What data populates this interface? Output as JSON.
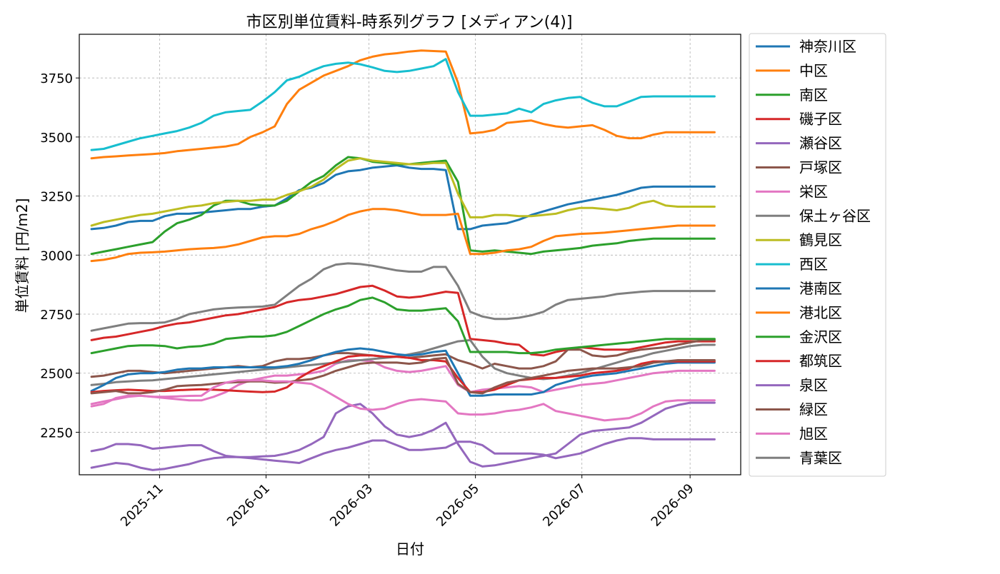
{
  "chart_data": {
    "type": "line",
    "title": "市区別単位賃料-時系列グラフ [メディアン(4)]",
    "xlabel": "日付",
    "ylabel": "単位賃料 [円/m2]",
    "xlim": [
      "2025-09-16",
      "2026-09-30"
    ],
    "ylim": [
      2070,
      3935
    ],
    "yticks": [
      2250,
      2500,
      2750,
      3000,
      3250,
      3500,
      3750
    ],
    "xticks": [
      "2025-11",
      "2026-01",
      "2026-03",
      "2026-05",
      "2026-07",
      "2026-09"
    ],
    "grid": true,
    "legend_position": "outside-right",
    "dates": [
      "2025-09-23",
      "2025-09-30",
      "2025-10-07",
      "2025-10-14",
      "2025-10-21",
      "2025-10-28",
      "2025-11-04",
      "2025-11-11",
      "2025-11-18",
      "2025-11-25",
      "2025-12-02",
      "2025-12-09",
      "2025-12-16",
      "2025-12-23",
      "2025-12-30",
      "2026-01-06",
      "2026-01-13",
      "2026-01-20",
      "2026-01-27",
      "2026-02-03",
      "2026-02-10",
      "2026-02-17",
      "2026-02-24",
      "2026-03-03",
      "2026-03-10",
      "2026-03-17",
      "2026-03-24",
      "2026-03-31",
      "2026-04-07",
      "2026-04-14",
      "2026-04-21",
      "2026-04-28",
      "2026-05-05",
      "2026-05-12",
      "2026-05-19",
      "2026-05-26",
      "2026-06-02",
      "2026-06-09",
      "2026-06-16",
      "2026-06-23",
      "2026-06-30",
      "2026-07-07",
      "2026-07-14",
      "2026-07-21",
      "2026-07-28",
      "2026-08-04",
      "2026-08-11",
      "2026-08-18",
      "2026-08-25",
      "2026-09-01",
      "2026-09-08",
      "2026-09-15"
    ],
    "series": [
      {
        "name": "神奈川区",
        "color": "#1f77b4",
        "values": [
          3110,
          3115,
          3125,
          3140,
          3145,
          3145,
          3165,
          3175,
          3175,
          3180,
          3185,
          3190,
          3195,
          3195,
          3205,
          3210,
          3240,
          3275,
          3285,
          3305,
          3340,
          3355,
          3360,
          3370,
          3375,
          3380,
          3370,
          3365,
          3365,
          3360,
          3110,
          3110,
          3125,
          3130,
          3135,
          3150,
          3170,
          3185,
          3200,
          3215,
          3225,
          3235,
          3245,
          3255,
          3270,
          3285,
          3290,
          3290,
          3290,
          3290,
          3290,
          3290
        ]
      },
      {
        "name": "中区",
        "color": "#ff7f0e",
        "values": [
          3410,
          3415,
          3418,
          3422,
          3425,
          3428,
          3432,
          3440,
          3445,
          3450,
          3455,
          3460,
          3470,
          3500,
          3520,
          3545,
          3640,
          3700,
          3730,
          3760,
          3780,
          3800,
          3825,
          3840,
          3850,
          3855,
          3862,
          3866,
          3864,
          3862,
          3730,
          3515,
          3520,
          3530,
          3560,
          3565,
          3570,
          3555,
          3545,
          3540,
          3545,
          3550,
          3530,
          3505,
          3495,
          3495,
          3510,
          3520,
          3520,
          3520,
          3520,
          3520
        ]
      },
      {
        "name": "南区",
        "color": "#2ca02c",
        "values": [
          3005,
          3015,
          3025,
          3035,
          3045,
          3055,
          3100,
          3135,
          3150,
          3170,
          3210,
          3230,
          3230,
          3215,
          3210,
          3210,
          3230,
          3270,
          3310,
          3335,
          3380,
          3415,
          3410,
          3395,
          3390,
          3385,
          3385,
          3390,
          3395,
          3400,
          3310,
          3020,
          3015,
          3020,
          3015,
          3010,
          3005,
          3015,
          3020,
          3025,
          3030,
          3040,
          3045,
          3050,
          3060,
          3065,
          3070,
          3070,
          3070,
          3070,
          3070,
          3070
        ]
      },
      {
        "name": "磯子区",
        "color": "#d62728",
        "values": [
          2640,
          2650,
          2655,
          2665,
          2675,
          2685,
          2700,
          2710,
          2715,
          2725,
          2735,
          2745,
          2750,
          2760,
          2770,
          2780,
          2800,
          2810,
          2815,
          2825,
          2835,
          2850,
          2865,
          2870,
          2850,
          2825,
          2820,
          2825,
          2835,
          2845,
          2840,
          2645,
          2640,
          2635,
          2625,
          2620,
          2580,
          2575,
          2590,
          2600,
          2610,
          2605,
          2600,
          2600,
          2600,
          2610,
          2620,
          2630,
          2635,
          2635,
          2635,
          2635
        ]
      },
      {
        "name": "瀬谷区",
        "color": "#9467bd",
        "values": [
          2170,
          2180,
          2200,
          2200,
          2195,
          2180,
          2185,
          2190,
          2195,
          2195,
          2170,
          2150,
          2145,
          2140,
          2135,
          2130,
          2125,
          2120,
          2140,
          2160,
          2175,
          2185,
          2200,
          2215,
          2215,
          2195,
          2175,
          2175,
          2180,
          2185,
          2210,
          2210,
          2195,
          2160,
          2160,
          2160,
          2160,
          2155,
          2140,
          2150,
          2160,
          2180,
          2200,
          2215,
          2225,
          2225,
          2220,
          2220,
          2220,
          2220,
          2220,
          2220
        ]
      },
      {
        "name": "戸塚区",
        "color": "#8c564b",
        "values": [
          2485,
          2490,
          2500,
          2510,
          2510,
          2505,
          2500,
          2505,
          2510,
          2515,
          2520,
          2525,
          2530,
          2525,
          2530,
          2550,
          2560,
          2560,
          2565,
          2575,
          2585,
          2585,
          2580,
          2575,
          2570,
          2570,
          2565,
          2570,
          2575,
          2580,
          2555,
          2540,
          2520,
          2540,
          2530,
          2520,
          2520,
          2530,
          2550,
          2600,
          2600,
          2575,
          2570,
          2575,
          2590,
          2600,
          2605,
          2610,
          2620,
          2630,
          2640,
          2640
        ]
      },
      {
        "name": "栄区",
        "color": "#e377c2",
        "values": [
          2370,
          2380,
          2390,
          2400,
          2405,
          2400,
          2395,
          2390,
          2385,
          2385,
          2400,
          2420,
          2450,
          2470,
          2480,
          2490,
          2490,
          2495,
          2500,
          2510,
          2540,
          2555,
          2555,
          2550,
          2525,
          2510,
          2505,
          2510,
          2520,
          2530,
          2450,
          2420,
          2430,
          2435,
          2440,
          2445,
          2440,
          2420,
          2430,
          2440,
          2450,
          2455,
          2460,
          2470,
          2480,
          2490,
          2500,
          2505,
          2510,
          2510,
          2510,
          2510
        ]
      },
      {
        "name": "保土ヶ谷区",
        "color": "#7f7f7f",
        "values": [
          2450,
          2455,
          2462,
          2465,
          2468,
          2470,
          2475,
          2480,
          2485,
          2490,
          2495,
          2500,
          2505,
          2510,
          2515,
          2520,
          2525,
          2530,
          2535,
          2540,
          2545,
          2550,
          2555,
          2560,
          2565,
          2570,
          2580,
          2590,
          2605,
          2620,
          2635,
          2640,
          2570,
          2520,
          2500,
          2490,
          2480,
          2475,
          2480,
          2490,
          2500,
          2515,
          2530,
          2545,
          2560,
          2570,
          2585,
          2595,
          2605,
          2615,
          2620,
          2620
        ]
      },
      {
        "name": "鶴見区",
        "color": "#bcbd22",
        "values": [
          3125,
          3140,
          3150,
          3160,
          3170,
          3175,
          3185,
          3195,
          3205,
          3210,
          3220,
          3225,
          3230,
          3230,
          3235,
          3235,
          3255,
          3270,
          3290,
          3320,
          3365,
          3400,
          3410,
          3400,
          3395,
          3390,
          3385,
          3385,
          3390,
          3390,
          3260,
          3160,
          3160,
          3170,
          3170,
          3165,
          3165,
          3170,
          3175,
          3190,
          3200,
          3200,
          3195,
          3190,
          3200,
          3220,
          3230,
          3210,
          3205,
          3205,
          3205,
          3205
        ]
      },
      {
        "name": "西区",
        "color": "#17becf",
        "values": [
          3445,
          3450,
          3465,
          3480,
          3495,
          3505,
          3515,
          3525,
          3540,
          3560,
          3590,
          3605,
          3610,
          3615,
          3650,
          3690,
          3740,
          3755,
          3780,
          3800,
          3810,
          3815,
          3808,
          3795,
          3780,
          3775,
          3780,
          3790,
          3800,
          3830,
          3690,
          3590,
          3590,
          3595,
          3600,
          3620,
          3605,
          3640,
          3655,
          3665,
          3670,
          3645,
          3630,
          3630,
          3650,
          3670,
          3672,
          3672,
          3672,
          3672,
          3672,
          3672
        ]
      },
      {
        "name": "港南区",
        "color": "#1f77b4",
        "values": [
          2425,
          2450,
          2480,
          2495,
          2500,
          2500,
          2505,
          2515,
          2520,
          2520,
          2525,
          2525,
          2525,
          2525,
          2525,
          2525,
          2530,
          2540,
          2555,
          2575,
          2590,
          2600,
          2605,
          2600,
          2590,
          2580,
          2575,
          2580,
          2590,
          2595,
          2500,
          2405,
          2405,
          2410,
          2410,
          2410,
          2410,
          2420,
          2450,
          2465,
          2480,
          2490,
          2495,
          2500,
          2510,
          2520,
          2530,
          2540,
          2545,
          2545,
          2545,
          2545
        ]
      },
      {
        "name": "港北区",
        "color": "#ff7f0e",
        "values": [
          2975,
          2980,
          2990,
          3005,
          3010,
          3012,
          3015,
          3020,
          3025,
          3028,
          3030,
          3035,
          3045,
          3060,
          3075,
          3080,
          3080,
          3090,
          3110,
          3125,
          3145,
          3170,
          3185,
          3195,
          3195,
          3190,
          3180,
          3170,
          3170,
          3170,
          3175,
          3005,
          3005,
          3010,
          3020,
          3025,
          3035,
          3060,
          3080,
          3085,
          3090,
          3092,
          3095,
          3100,
          3105,
          3110,
          3115,
          3120,
          3125,
          3125,
          3125,
          3125
        ]
      },
      {
        "name": "金沢区",
        "color": "#2ca02c",
        "values": [
          2585,
          2595,
          2605,
          2615,
          2618,
          2618,
          2615,
          2605,
          2612,
          2615,
          2625,
          2645,
          2650,
          2655,
          2655,
          2660,
          2675,
          2700,
          2725,
          2750,
          2770,
          2785,
          2810,
          2820,
          2800,
          2770,
          2765,
          2765,
          2770,
          2775,
          2720,
          2590,
          2590,
          2590,
          2590,
          2585,
          2585,
          2590,
          2600,
          2605,
          2610,
          2615,
          2620,
          2625,
          2630,
          2635,
          2640,
          2645,
          2645,
          2645,
          2645,
          2645
        ]
      },
      {
        "name": "都筑区",
        "color": "#d62728",
        "values": [
          2420,
          2425,
          2428,
          2430,
          2428,
          2425,
          2425,
          2428,
          2430,
          2432,
          2430,
          2428,
          2425,
          2422,
          2420,
          2422,
          2440,
          2480,
          2510,
          2530,
          2550,
          2570,
          2575,
          2575,
          2570,
          2570,
          2565,
          2555,
          2555,
          2550,
          2480,
          2420,
          2420,
          2430,
          2450,
          2470,
          2475,
          2480,
          2480,
          2485,
          2490,
          2500,
          2505,
          2510,
          2520,
          2540,
          2550,
          2550,
          2550,
          2550,
          2550,
          2550
        ]
      },
      {
        "name": "泉区",
        "color": "#9467bd",
        "values": [
          2100,
          2110,
          2120,
          2115,
          2100,
          2090,
          2095,
          2105,
          2115,
          2130,
          2140,
          2145,
          2145,
          2145,
          2148,
          2150,
          2160,
          2175,
          2200,
          2230,
          2330,
          2360,
          2370,
          2330,
          2275,
          2240,
          2230,
          2240,
          2260,
          2290,
          2200,
          2125,
          2105,
          2110,
          2120,
          2130,
          2140,
          2150,
          2160,
          2200,
          2240,
          2255,
          2260,
          2265,
          2270,
          2290,
          2320,
          2350,
          2365,
          2375,
          2375,
          2375
        ]
      },
      {
        "name": "緑区",
        "color": "#8c564b",
        "values": [
          2415,
          2420,
          2425,
          2415,
          2415,
          2420,
          2430,
          2445,
          2448,
          2450,
          2455,
          2460,
          2462,
          2465,
          2465,
          2460,
          2462,
          2470,
          2475,
          2490,
          2510,
          2525,
          2540,
          2545,
          2545,
          2545,
          2540,
          2545,
          2560,
          2565,
          2455,
          2420,
          2415,
          2440,
          2460,
          2470,
          2480,
          2490,
          2500,
          2510,
          2515,
          2520,
          2520,
          2520,
          2525,
          2530,
          2545,
          2550,
          2555,
          2555,
          2555,
          2555
        ]
      },
      {
        "name": "旭区",
        "color": "#e377c2",
        "values": [
          2360,
          2370,
          2395,
          2405,
          2405,
          2400,
          2400,
          2402,
          2404,
          2405,
          2440,
          2460,
          2470,
          2470,
          2470,
          2465,
          2465,
          2460,
          2455,
          2430,
          2400,
          2370,
          2350,
          2345,
          2350,
          2370,
          2385,
          2390,
          2385,
          2380,
          2330,
          2325,
          2325,
          2330,
          2340,
          2345,
          2355,
          2370,
          2340,
          2330,
          2320,
          2310,
          2300,
          2305,
          2310,
          2330,
          2360,
          2380,
          2385,
          2385,
          2385,
          2385
        ]
      },
      {
        "name": "青葉区",
        "color": "#7f7f7f",
        "values": [
          2680,
          2690,
          2700,
          2710,
          2712,
          2712,
          2715,
          2730,
          2750,
          2760,
          2770,
          2775,
          2778,
          2780,
          2782,
          2790,
          2830,
          2870,
          2900,
          2940,
          2960,
          2965,
          2962,
          2955,
          2945,
          2935,
          2930,
          2930,
          2950,
          2950,
          2870,
          2760,
          2740,
          2730,
          2730,
          2735,
          2745,
          2760,
          2790,
          2810,
          2815,
          2820,
          2825,
          2835,
          2840,
          2845,
          2848,
          2848,
          2848,
          2848,
          2848,
          2848
        ]
      }
    ]
  }
}
